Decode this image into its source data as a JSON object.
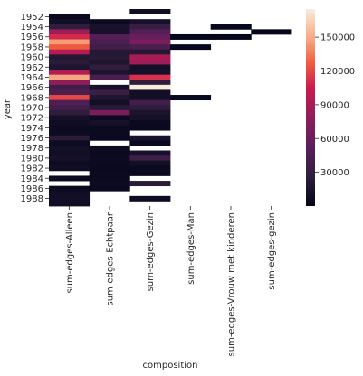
{
  "chart_data": {
    "type": "heatmap",
    "xlabel": "composition",
    "ylabel": "year",
    "x_categories": [
      "sum-edges-Alleen",
      "sum-edges-Echtpaar",
      "sum-edges-Gezin",
      "sum-edges-Man",
      "sum-edges-Vrouw met kinderen",
      "sum-edges-gezin"
    ],
    "y_categories": [
      "1951",
      "1952",
      "1953",
      "1954",
      "1955",
      "1956",
      "1957",
      "1958",
      "1959",
      "1960",
      "1961",
      "1962",
      "1963",
      "1964",
      "1965",
      "1966",
      "1967",
      "1968",
      "1969",
      "1970",
      "1971",
      "1972",
      "1973",
      "1974",
      "1975",
      "1976",
      "1977",
      "1978",
      "1979",
      "1980",
      "1981",
      "1982",
      "1983",
      "1984",
      "1985",
      "1986",
      "1987",
      "1988",
      "1989"
    ],
    "y_tick_labels": [
      "1952",
      "1954",
      "1956",
      "1958",
      "1960",
      "1962",
      "1964",
      "1966",
      "1968",
      "1970",
      "1972",
      "1974",
      "1976",
      "1978",
      "1980",
      "1982",
      "1984",
      "1986",
      "1988"
    ],
    "colorbar": {
      "min": 0,
      "max": 175000,
      "ticks": [
        "30000",
        "60000",
        "90000",
        "120000",
        "150000"
      ],
      "tick_values": [
        30000,
        60000,
        90000,
        120000,
        150000
      ]
    },
    "values": [
      [
        null,
        null,
        8000,
        null,
        null,
        null
      ],
      [
        4000,
        null,
        null,
        null,
        null,
        null
      ],
      [
        9000,
        5000,
        12000,
        null,
        null,
        null
      ],
      [
        26000,
        14000,
        32000,
        null,
        3000,
        null
      ],
      [
        85000,
        12000,
        48000,
        null,
        null,
        1000
      ],
      [
        110000,
        48000,
        58000,
        2000,
        2000,
        null
      ],
      [
        145000,
        42000,
        68000,
        null,
        null,
        null
      ],
      [
        126000,
        37000,
        42000,
        3000,
        null,
        null
      ],
      [
        96000,
        20000,
        20000,
        null,
        null,
        null
      ],
      [
        20000,
        22000,
        90000,
        null,
        null,
        null
      ],
      [
        24000,
        17000,
        86000,
        null,
        null,
        null
      ],
      [
        16000,
        28000,
        10000,
        null,
        null,
        null
      ],
      [
        95000,
        16000,
        12000,
        null,
        null,
        null
      ],
      [
        148000,
        43000,
        112000,
        null,
        null,
        null
      ],
      [
        78000,
        null,
        26000,
        null,
        null,
        null
      ],
      [
        37000,
        12000,
        175000,
        null,
        null,
        null
      ],
      [
        42000,
        33000,
        10000,
        null,
        null,
        null
      ],
      [
        120000,
        18000,
        10000,
        3000,
        null,
        null
      ],
      [
        45000,
        10000,
        38000,
        null,
        null,
        null
      ],
      [
        38000,
        22000,
        26000,
        null,
        null,
        null
      ],
      [
        26000,
        68000,
        15000,
        null,
        null,
        null
      ],
      [
        12000,
        5000,
        12000,
        null,
        null,
        null
      ],
      [
        8000,
        12000,
        5000,
        null,
        null,
        null
      ],
      [
        6000,
        5000,
        4000,
        null,
        null,
        null
      ],
      [
        6000,
        5000,
        null,
        null,
        null,
        null
      ],
      [
        24000,
        4000,
        14000,
        null,
        null,
        null
      ],
      [
        7000,
        null,
        4000,
        null,
        null,
        null
      ],
      [
        10000,
        7000,
        null,
        null,
        null,
        null
      ],
      [
        9000,
        5000,
        12000,
        null,
        null,
        null
      ],
      [
        12000,
        6000,
        35000,
        null,
        null,
        null
      ],
      [
        6000,
        5000,
        10000,
        null,
        null,
        null
      ],
      [
        8000,
        4000,
        5000,
        null,
        null,
        null
      ],
      [
        null,
        5000,
        4000,
        null,
        null,
        null
      ],
      [
        5000,
        5000,
        null,
        null,
        null,
        null
      ],
      [
        null,
        6000,
        24000,
        null,
        null,
        null
      ],
      [
        6000,
        4000,
        null,
        null,
        null,
        null
      ],
      [
        8000,
        null,
        null,
        null,
        null,
        null
      ],
      [
        9000,
        null,
        7000,
        null,
        null,
        null
      ],
      [
        8000,
        null,
        null,
        null,
        null,
        null
      ]
    ]
  }
}
